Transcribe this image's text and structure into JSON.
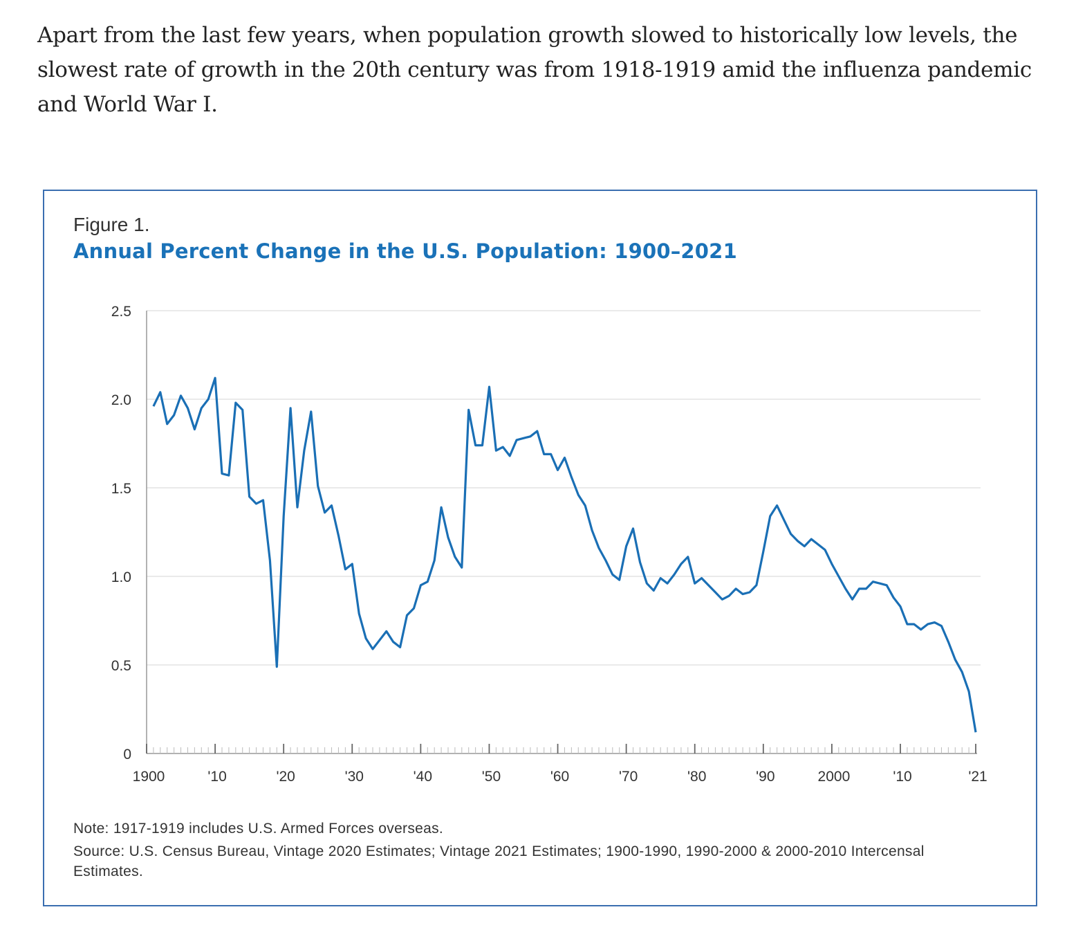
{
  "intro_text": "Apart from the last few years, when population growth slowed to historically low levels, the slowest rate of growth in the 20th century was from 1918-1919 amid the influenza pandemic and World War I.",
  "figure": {
    "label": "Figure 1.",
    "note": "Note: 1917-1919 includes U.S. Armed Forces overseas.",
    "source": "Source: U.S. Census Bureau, Vintage 2020 Estimates; Vintage 2021 Estimates; 1900-1990, 1990-2000 & 2000-2010 Intercensal Estimates."
  },
  "colors": {
    "line": "#1a6fb5",
    "title": "#1a72b8",
    "border": "#3a6eb0",
    "grid": "#e3e3e3"
  },
  "chart_data": {
    "type": "line",
    "title": "Annual Percent Change in the U.S. Population: 1900–2021",
    "xlabel": "",
    "ylabel": "",
    "xlim": [
      1900,
      2021
    ],
    "ylim": [
      0,
      2.5
    ],
    "grid": true,
    "y_ticks": [
      0,
      0.5,
      1.0,
      1.5,
      2.0,
      2.5
    ],
    "y_tick_labels": [
      "0",
      "0.5",
      "1.0",
      "1.5",
      "2.0",
      "2.5"
    ],
    "x_ticks": [
      1900,
      1910,
      1920,
      1930,
      1940,
      1950,
      1960,
      1970,
      1980,
      1990,
      2000,
      2010,
      2021
    ],
    "x_tick_labels": [
      "1900",
      "'10",
      "'20",
      "'30",
      "'40",
      "'50",
      "'60",
      "'70",
      "'80",
      "'90",
      "2000",
      "'10",
      "'21"
    ],
    "series": [
      {
        "name": "Annual percent change",
        "x": [
          1901,
          1902,
          1903,
          1904,
          1905,
          1906,
          1907,
          1908,
          1909,
          1910,
          1911,
          1912,
          1913,
          1914,
          1915,
          1916,
          1917,
          1918,
          1919,
          1920,
          1921,
          1922,
          1923,
          1924,
          1925,
          1926,
          1927,
          1928,
          1929,
          1930,
          1931,
          1932,
          1933,
          1934,
          1935,
          1936,
          1937,
          1938,
          1939,
          1940,
          1941,
          1942,
          1943,
          1944,
          1945,
          1946,
          1947,
          1948,
          1949,
          1950,
          1951,
          1952,
          1953,
          1954,
          1955,
          1956,
          1957,
          1958,
          1959,
          1960,
          1961,
          1962,
          1963,
          1964,
          1965,
          1966,
          1967,
          1968,
          1969,
          1970,
          1971,
          1972,
          1973,
          1974,
          1975,
          1976,
          1977,
          1978,
          1979,
          1980,
          1981,
          1982,
          1983,
          1984,
          1985,
          1986,
          1987,
          1988,
          1989,
          1990,
          1991,
          1992,
          1993,
          1994,
          1995,
          1996,
          1997,
          1998,
          1999,
          2000,
          2001,
          2002,
          2003,
          2004,
          2005,
          2006,
          2007,
          2008,
          2009,
          2010,
          2011,
          2012,
          2013,
          2014,
          2015,
          2016,
          2017,
          2018,
          2019,
          2020,
          2021
        ],
        "values": [
          1.96,
          2.04,
          1.86,
          1.91,
          2.02,
          1.95,
          1.83,
          1.95,
          2.0,
          2.12,
          1.58,
          1.57,
          1.98,
          1.94,
          1.45,
          1.41,
          1.43,
          1.09,
          0.49,
          1.34,
          1.95,
          1.39,
          1.71,
          1.93,
          1.51,
          1.36,
          1.4,
          1.23,
          1.04,
          1.07,
          0.79,
          0.65,
          0.59,
          0.64,
          0.69,
          0.63,
          0.6,
          0.78,
          0.82,
          0.95,
          0.97,
          1.09,
          1.39,
          1.22,
          1.11,
          1.05,
          1.94,
          1.74,
          1.74,
          2.07,
          1.71,
          1.73,
          1.68,
          1.77,
          1.78,
          1.79,
          1.82,
          1.69,
          1.69,
          1.6,
          1.67,
          1.56,
          1.46,
          1.4,
          1.26,
          1.16,
          1.09,
          1.01,
          0.98,
          1.17,
          1.27,
          1.08,
          0.96,
          0.92,
          0.99,
          0.96,
          1.01,
          1.07,
          1.11,
          0.96,
          0.99,
          0.95,
          0.91,
          0.87,
          0.89,
          0.93,
          0.9,
          0.91,
          0.95,
          1.14,
          1.34,
          1.4,
          1.32,
          1.24,
          1.2,
          1.17,
          1.21,
          1.18,
          1.15,
          1.07,
          1.0,
          0.93,
          0.87,
          0.93,
          0.93,
          0.97,
          0.96,
          0.95,
          0.88,
          0.83,
          0.73,
          0.73,
          0.7,
          0.73,
          0.74,
          0.72,
          0.63,
          0.53,
          0.46,
          0.35,
          0.12
        ]
      }
    ]
  }
}
